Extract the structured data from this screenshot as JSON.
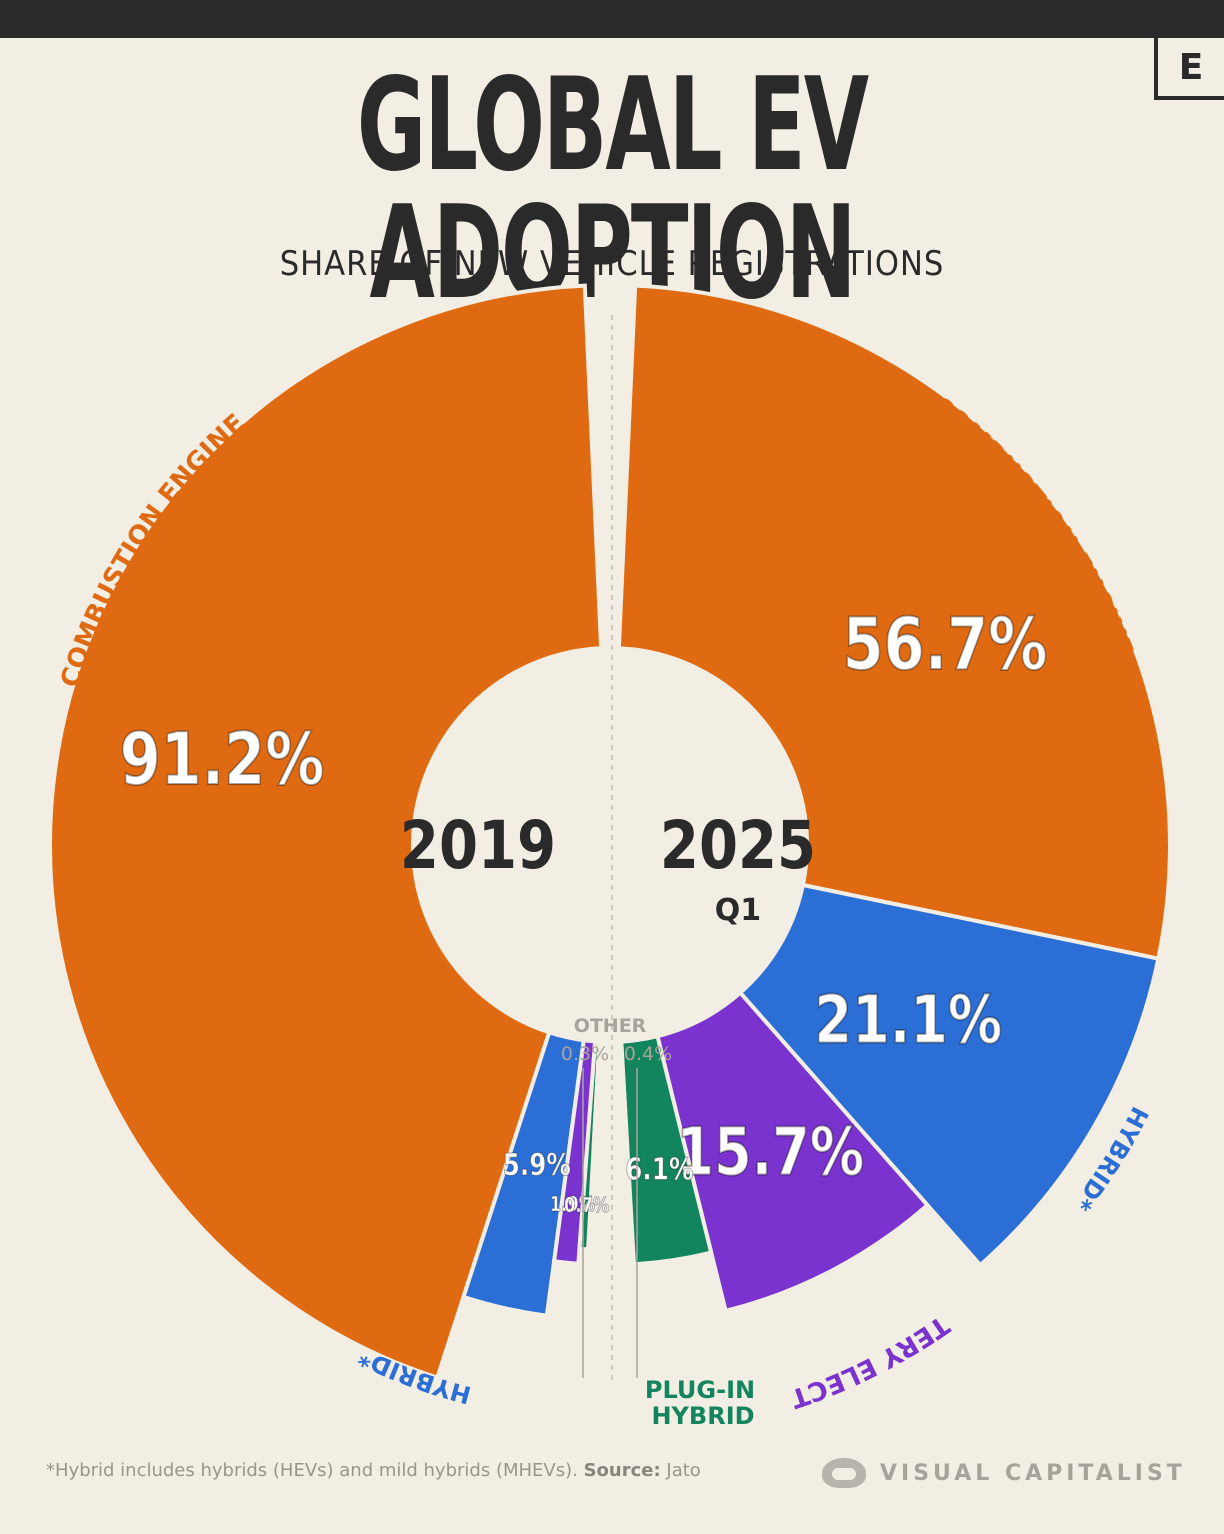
{
  "title": "GLOBAL EV ADOPTION",
  "subtitle": "SHARE OF NEW VEHICLE REGISTRATIONS",
  "corner_mark": "E",
  "footnote": {
    "text": "*Hybrid includes hybrids (HEVs) and mild hybrids (MHEVs). ",
    "source_label": "Source:",
    "source": " Jato"
  },
  "brand": "VISUAL CAPITALIST",
  "other_label": "OTHER",
  "colors": {
    "combustion": "#e06a12",
    "hybrid": "#2a6ed6",
    "battery": "#7b33cf",
    "plugin": "#12855e",
    "other": "#bdb8b0"
  },
  "chart_data": {
    "type": "pie",
    "categories": [
      "Combustion Engine",
      "Hybrid*",
      "Battery Electric",
      "Plug-in Hybrid",
      "Other"
    ],
    "series": [
      {
        "name": "2019",
        "values": [
          91.2,
          5.9,
          1.9,
          0.7,
          0.3
        ],
        "labels": [
          "91.2%",
          "5.9%",
          "1.9%",
          "0.7%",
          "0.3%"
        ]
      },
      {
        "name": "2025 Q1",
        "values": [
          56.7,
          21.1,
          15.7,
          6.1,
          0.4
        ],
        "labels": [
          "56.7%",
          "21.1%",
          "15.7%",
          "6.1%",
          "0.4%"
        ]
      }
    ],
    "center_labels": {
      "left_year": "2019",
      "right_year": "2025",
      "right_sub": "Q1"
    },
    "segment_labels_left": {
      "combustion": "COMBUSTION ENGINE",
      "hybrid": "HYBRID*"
    },
    "segment_labels_right": {
      "combustion": "COMBUSTION ENGINE",
      "hybrid": "HYBRID*",
      "battery": "BATTERY ELECTRIC",
      "plugin_1": "PLUG-IN",
      "plugin_2": "HYBRID"
    }
  }
}
